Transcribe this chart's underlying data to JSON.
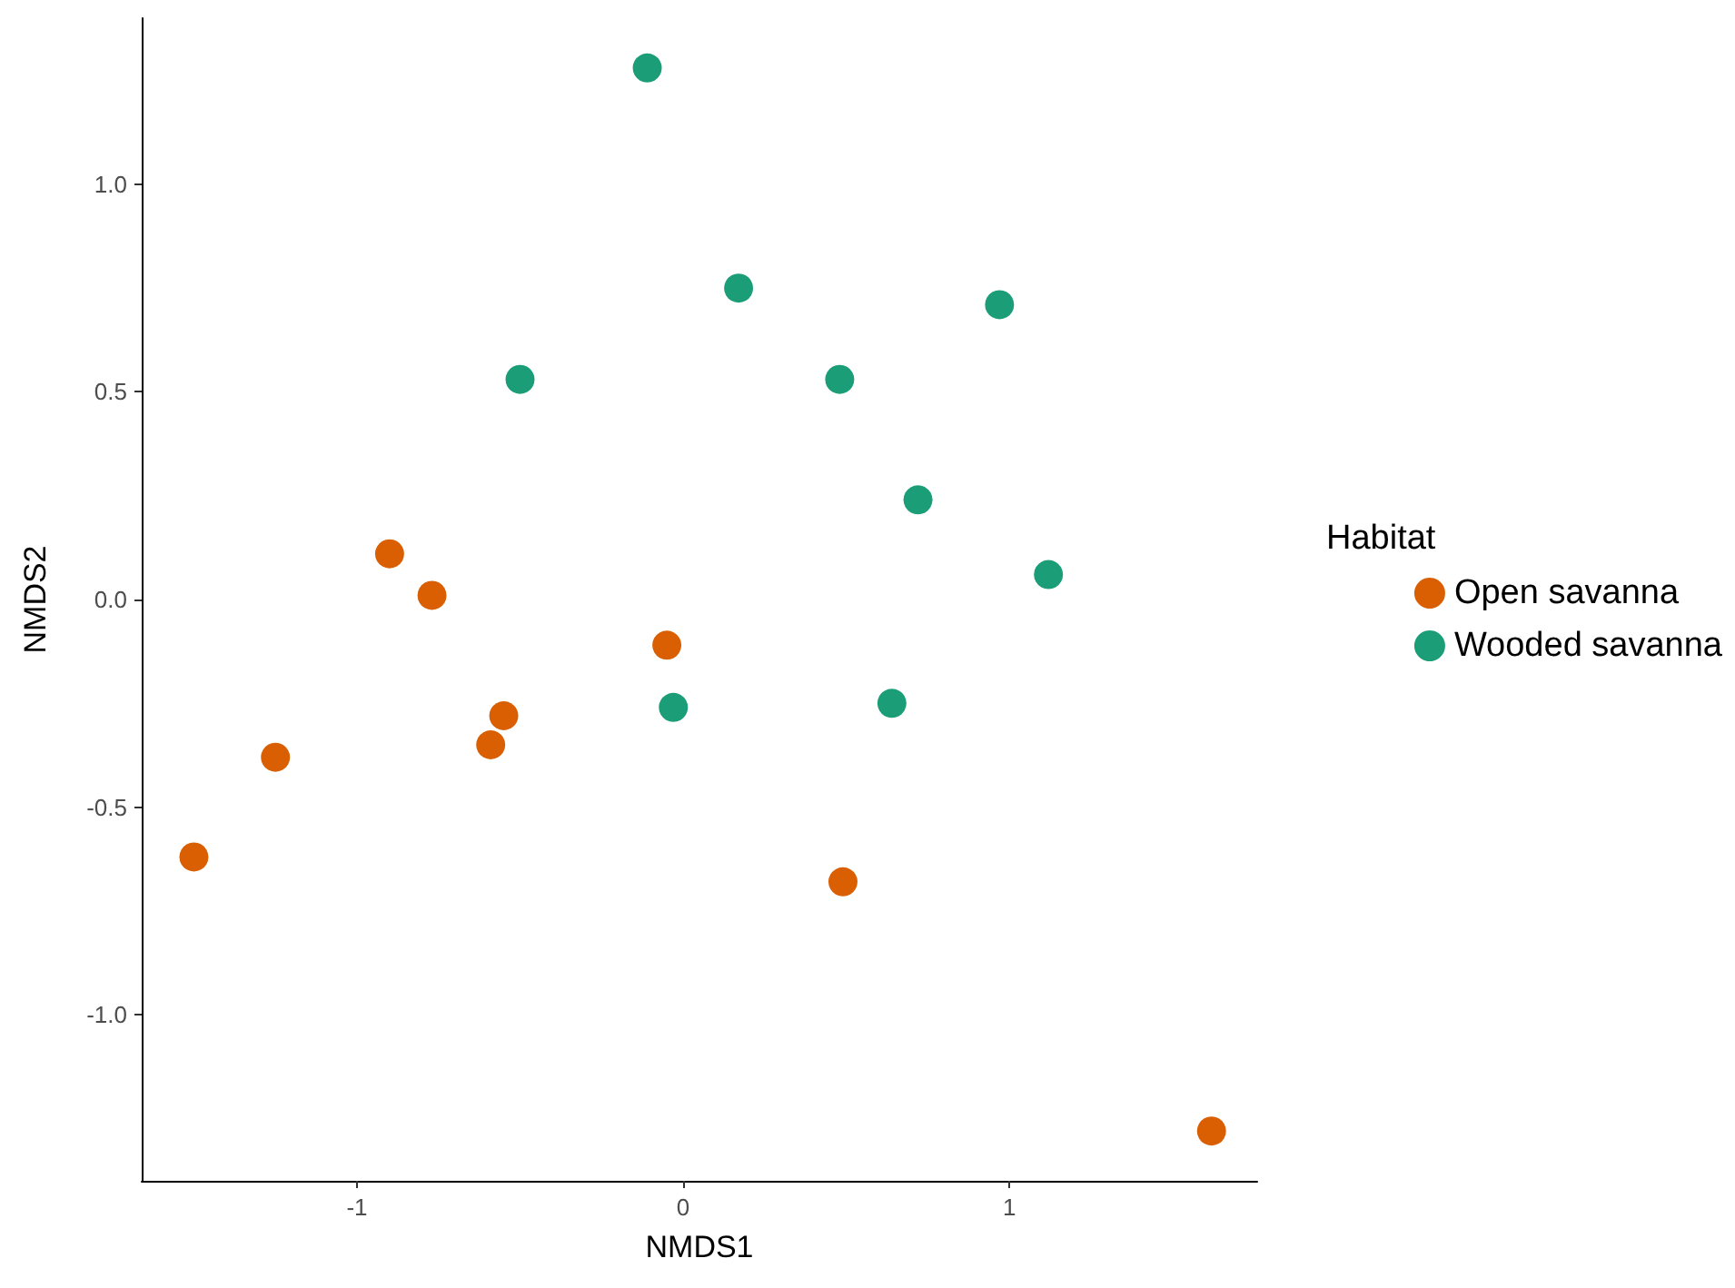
{
  "chart_data": {
    "type": "scatter",
    "xlabel": "NMDS1",
    "ylabel": "NMDS2",
    "legend_title": "Habitat",
    "series": [
      {
        "name": "Open savanna",
        "color": "#d95f02",
        "x": [
          -1.5,
          -1.25,
          -0.9,
          -0.77,
          -0.59,
          -0.55,
          -0.05,
          0.49,
          1.62
        ],
        "values": [
          -0.62,
          -0.38,
          0.11,
          0.01,
          -0.35,
          -0.28,
          -0.11,
          -0.68,
          -1.28
        ]
      },
      {
        "name": "Wooded savanna",
        "color": "#1b9e77",
        "x": [
          -0.11,
          0.17,
          -0.5,
          0.48,
          0.97,
          0.72,
          1.12,
          -0.03,
          0.64
        ],
        "values": [
          1.28,
          0.75,
          0.53,
          0.53,
          0.71,
          0.24,
          0.06,
          -0.26,
          -0.25
        ]
      }
    ],
    "xlim": [
      -1.66,
      1.76
    ],
    "xticks": [
      -1,
      0,
      1
    ],
    "ylim": [
      -1.4,
      1.4
    ],
    "yticks": [
      {
        "value": -1,
        "label": "-1.0"
      },
      {
        "value": -0.5,
        "label": "-0.5"
      },
      {
        "value": 0,
        "label": "0.0"
      },
      {
        "value": 0.5,
        "label": "0.5"
      },
      {
        "value": 1,
        "label": "1.0"
      }
    ],
    "grid": false,
    "legend": "right",
    "marker": "circle"
  }
}
